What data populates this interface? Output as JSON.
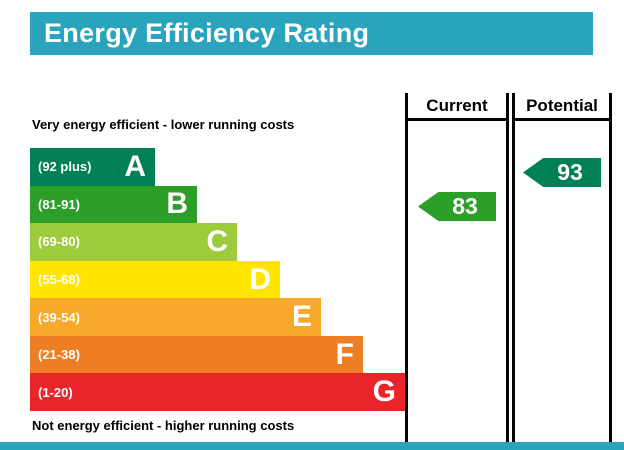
{
  "title": "Energy Efficiency Rating",
  "colors": {
    "titlebar_bg": "#2aa4bc",
    "titlebar_text": "#ffffff",
    "bottombar_bg": "#2aa4bc",
    "line": "#000000"
  },
  "chart_data": {
    "type": "bar",
    "subtype": "epc-energy-efficiency-rating",
    "title": "Energy Efficiency Rating",
    "top_note": "Very energy efficient - lower running costs",
    "bottom_note": "Not energy efficient - higher running costs",
    "columns": [
      {
        "label": "Current"
      },
      {
        "label": "Potential"
      }
    ],
    "bands": [
      {
        "letter": "A",
        "range": "(92 plus)",
        "min": 92,
        "max": 100,
        "color": "#008054"
      },
      {
        "letter": "B",
        "range": "(81-91)",
        "min": 81,
        "max": 91,
        "color": "#2c9f29"
      },
      {
        "letter": "C",
        "range": "(69-80)",
        "min": 69,
        "max": 80,
        "color": "#9dcb3c"
      },
      {
        "letter": "D",
        "range": "(55-68)",
        "min": 55,
        "max": 68,
        "color": "#ffe500"
      },
      {
        "letter": "E",
        "range": "(39-54)",
        "min": 39,
        "max": 54,
        "color": "#f6a828"
      },
      {
        "letter": "F",
        "range": "(21-38)",
        "min": 21,
        "max": 38,
        "color": "#ee7e23"
      },
      {
        "letter": "G",
        "range": "(1-20)",
        "min": 1,
        "max": 20,
        "color": "#e9242a"
      }
    ],
    "current": {
      "value": 83,
      "band": "B",
      "color": "#2c9f29"
    },
    "potential": {
      "value": 93,
      "band": "A",
      "color": "#008054"
    }
  }
}
